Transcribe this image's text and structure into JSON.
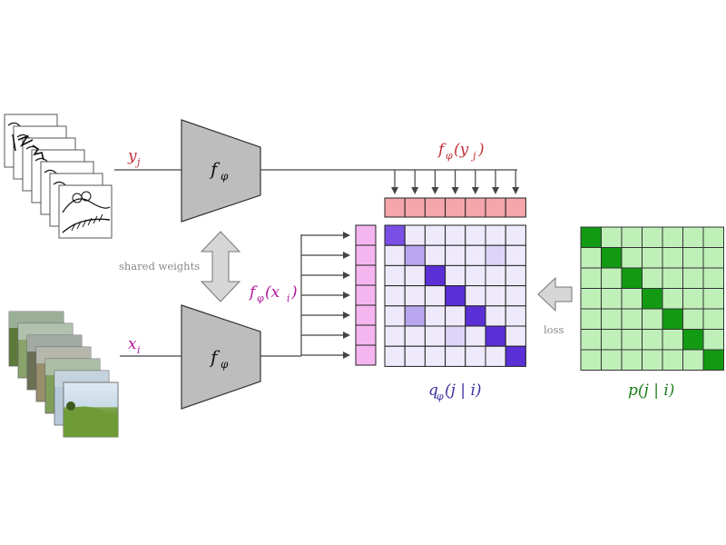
{
  "labels": {
    "y_j": "y",
    "y_j_sub": "j",
    "x_i": "x",
    "x_i_sub": "i",
    "encoder_top": "f",
    "encoder_top_sub": "φ",
    "encoder_bottom": "f",
    "encoder_bottom_sub": "φ",
    "shared_weights": "shared weights",
    "f_y": "f",
    "f_y_sub": "φ",
    "f_y_arg": "(y",
    "f_y_arg_sub": "j",
    "f_y_close": ")",
    "f_x": "f",
    "f_x_sub": "φ",
    "f_x_arg": "(x",
    "f_x_arg_sub": "i",
    "f_x_close": ")",
    "q_label": "q",
    "q_sub": "φ",
    "q_arg": "(j | i)",
    "p_label": "p(j | i)",
    "loss": "loss"
  },
  "colors": {
    "q_text": "#3a2f9e",
    "p_text": "#1a7d1a",
    "fy_text": "#c0313a",
    "fx_text": "#b0179a",
    "encoder_fill": "#bdbdbd",
    "embed_top": "#f4a6aa",
    "embed_left": "#f5b5ef",
    "q_diag_strong": "#5b2fd6",
    "q_diag_mid": "#7a4fe6",
    "q_light": "#b8a6ee",
    "q_faint": "#ddd5f7",
    "q_base": "#eeeafb",
    "p_base": "#bff0b8",
    "p_diag": "#129a12"
  },
  "q_matrix": [
    [
      2,
      0,
      0,
      0,
      0,
      0,
      0
    ],
    [
      0,
      3,
      0,
      0,
      0,
      1,
      0
    ],
    [
      0,
      0,
      2,
      0,
      0,
      0,
      0
    ],
    [
      0,
      0,
      0,
      2,
      0,
      0,
      0
    ],
    [
      0,
      1,
      0,
      0,
      2,
      0,
      0
    ],
    [
      0,
      0,
      0,
      4,
      0,
      2,
      0
    ],
    [
      0,
      0,
      0,
      0,
      0,
      0,
      2
    ]
  ],
  "p_matrix": [
    [
      1,
      0,
      0,
      0,
      0,
      0,
      0
    ],
    [
      0,
      1,
      0,
      0,
      0,
      0,
      0
    ],
    [
      0,
      0,
      1,
      0,
      0,
      0,
      0
    ],
    [
      0,
      0,
      0,
      1,
      0,
      0,
      0
    ],
    [
      0,
      0,
      0,
      0,
      1,
      0,
      0
    ],
    [
      0,
      0,
      0,
      0,
      0,
      1,
      0
    ],
    [
      0,
      0,
      0,
      0,
      0,
      0,
      1
    ]
  ],
  "embedding_slots": 7,
  "sketch_count": 7,
  "photo_count": 7
}
